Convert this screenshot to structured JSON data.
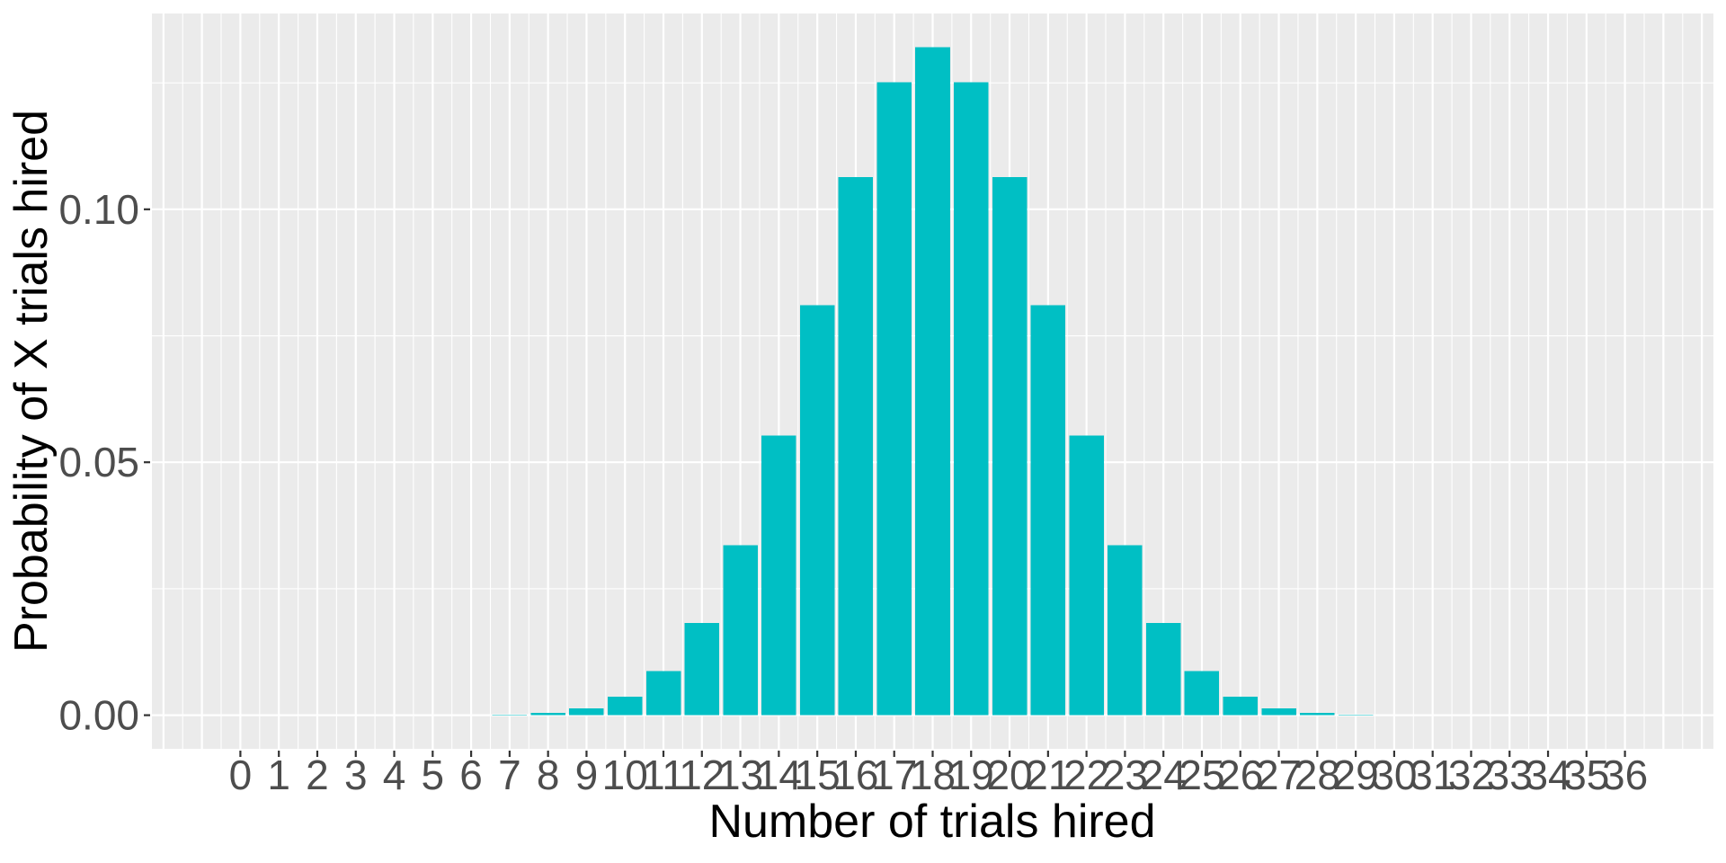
{
  "chart_data": {
    "type": "bar",
    "title": "",
    "xlabel": "Number of trials hired",
    "ylabel": "Probability of X trials hired",
    "categories": [
      0,
      1,
      2,
      3,
      4,
      5,
      6,
      7,
      8,
      9,
      10,
      11,
      12,
      13,
      14,
      15,
      16,
      17,
      18,
      19,
      20,
      21,
      22,
      23,
      24,
      25,
      26,
      27,
      28,
      29,
      30,
      31,
      32,
      33,
      34,
      35,
      36
    ],
    "x_tick_labels": [
      "0",
      "1",
      "2",
      "3",
      "4",
      "5",
      "6",
      "7",
      "8",
      "9",
      "10",
      "11",
      "12",
      "13",
      "14",
      "15",
      "16",
      "17",
      "18",
      "19",
      "20",
      "21",
      "22",
      "23",
      "24",
      "25",
      "26",
      "27",
      "28",
      "29",
      "30",
      "31",
      "32",
      "33",
      "34",
      "35",
      "36"
    ],
    "values": [
      0.0,
      0.0,
      0.0,
      1e-07,
      9e-07,
      5.5e-06,
      2.83e-05,
      0.0001215,
      0.0004404,
      0.00137,
      0.0036989,
      0.0087429,
      0.0182143,
      0.0336264,
      0.0552434,
      0.0810236,
      0.1063435,
      0.12511,
      0.1320606,
      0.12511,
      0.1063435,
      0.0810236,
      0.0552434,
      0.0336264,
      0.0182143,
      0.0087429,
      0.0036989,
      0.00137,
      0.0004404,
      0.0001215,
      2.83e-05,
      5.5e-06,
      9e-07,
      1e-07,
      0.0,
      0.0,
      0.0
    ],
    "y_major_ticks": [
      0.0,
      0.05,
      0.1
    ],
    "y_tick_labels": [
      "0.00",
      "0.05",
      "0.10"
    ],
    "y_minor_ticks": [
      0.025,
      0.075,
      0.125
    ],
    "ylim": [
      -0.00665,
      0.13871
    ],
    "xlim": [
      -2.3,
      38.3
    ],
    "bar_width": 0.9,
    "grid": "major-and-minor",
    "legend": "none",
    "colors": {
      "bar": "#00BFC4",
      "panel_background": "#EBEBEB",
      "gridline": "#FFFFFF",
      "tick_label": "#4D4D4D",
      "tick_mark": "#333333",
      "axis_title": "#000000",
      "page_background": "#FFFFFF"
    }
  }
}
